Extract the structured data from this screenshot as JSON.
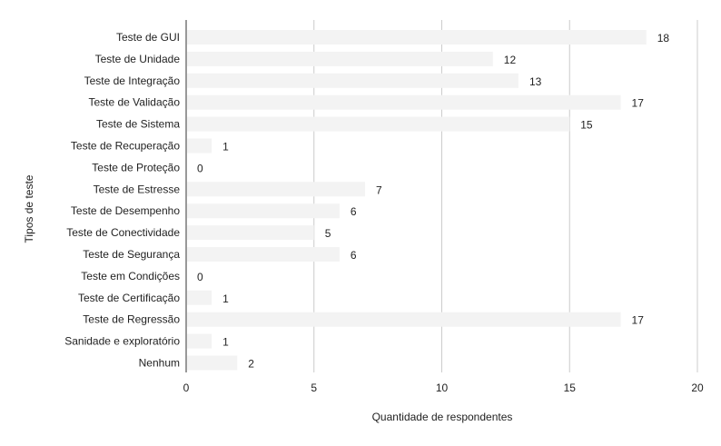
{
  "chart_data": {
    "type": "bar",
    "orientation": "horizontal",
    "categories": [
      "Teste de GUI",
      "Teste de Unidade",
      "Teste de Integração",
      "Teste de Validação",
      "Teste de Sistema",
      "Teste de Recuperação",
      "Teste de Proteção",
      "Teste de Estresse",
      "Teste de Desempenho",
      "Teste de Conectividade",
      "Teste de Segurança",
      "Teste em Condições",
      "Teste de Certificação",
      "Teste de Regressão",
      "Sanidade e exploratório",
      "Nenhum"
    ],
    "values": [
      18,
      12,
      13,
      17,
      15,
      1,
      0,
      7,
      6,
      5,
      6,
      0,
      1,
      17,
      1,
      2
    ],
    "xlabel": "Quantidade de respondentes",
    "ylabel": "Tipos de teste",
    "xlim": [
      0,
      20
    ],
    "xticks": [
      0,
      5,
      10,
      15,
      20
    ],
    "grid": true,
    "colors": {
      "bar": "#f3f3f3",
      "grid": "#cccccc",
      "axis": "#333333",
      "text": "#222222"
    }
  }
}
